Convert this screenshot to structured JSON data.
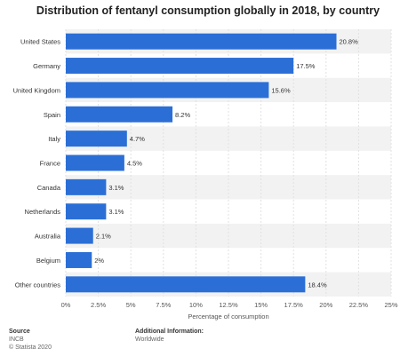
{
  "chart_data": {
    "type": "bar",
    "orientation": "horizontal",
    "title": "Distribution of fentanyl consumption globally in 2018, by country",
    "categories": [
      "United States",
      "Germany",
      "United Kingdom",
      "Spain",
      "Italy",
      "France",
      "Canada",
      "Netherlands",
      "Australia",
      "Belgium",
      "Other countries"
    ],
    "values": [
      20.8,
      17.5,
      15.6,
      8.2,
      4.7,
      4.5,
      3.1,
      3.1,
      2.1,
      2,
      18.4
    ],
    "value_labels": [
      "20.8%",
      "17.5%",
      "15.6%",
      "8.2%",
      "4.7%",
      "4.5%",
      "3.1%",
      "3.1%",
      "2.1%",
      "2%",
      "18.4%"
    ],
    "xlabel": "Percentage of consumption",
    "ylabel": "",
    "xlim": [
      0,
      25
    ],
    "x_ticks": [
      "0%",
      "2.5%",
      "5%",
      "7.5%",
      "10%",
      "12.5%",
      "15%",
      "17.5%",
      "20%",
      "22.5%",
      "25%"
    ],
    "grid": true,
    "bar_color": "#2b6fd6"
  },
  "footer": {
    "source_label": "Source",
    "source_value": "INCB",
    "copyright": "© Statista 2020",
    "additional_label": "Additional Information:",
    "additional_value": "Worldwide"
  }
}
